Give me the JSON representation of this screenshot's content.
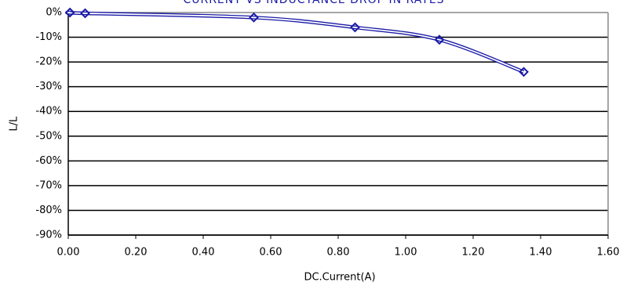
{
  "chart_data": {
    "type": "line",
    "title": "CURRENT VS INDUCTANCE DROP IN RATES",
    "x_label": "DC.Current(A)",
    "y_label": "L/L",
    "x": [
      0.005,
      0.05,
      0.55,
      0.85,
      1.1,
      1.35
    ],
    "series": [
      {
        "name": "L/L",
        "color": "#1a1aa6",
        "values": [
          0,
          -0.3,
          -2,
          -6,
          -11,
          -24
        ]
      }
    ],
    "xlim": [
      0,
      1.6
    ],
    "ylim": [
      -90,
      0
    ],
    "xticks": [
      {
        "value": 0,
        "label": "0.00"
      },
      {
        "value": 0.2,
        "label": "0.20"
      },
      {
        "value": 0.4,
        "label": "0.40"
      },
      {
        "value": 0.6,
        "label": "0.60"
      },
      {
        "value": 0.8,
        "label": "0.80"
      },
      {
        "value": 1.0,
        "label": "1.00"
      },
      {
        "value": 1.2,
        "label": "1.20"
      },
      {
        "value": 1.4,
        "label": "1.40"
      },
      {
        "value": 1.6,
        "label": "1.60"
      }
    ],
    "yticks": [
      {
        "value": 0,
        "label": "0%"
      },
      {
        "value": -10,
        "label": "-10%"
      },
      {
        "value": -20,
        "label": "-20%"
      },
      {
        "value": -30,
        "label": "-30%"
      },
      {
        "value": -40,
        "label": "-40%"
      },
      {
        "value": -50,
        "label": "-50%"
      },
      {
        "value": -60,
        "label": "-60%"
      },
      {
        "value": -70,
        "label": "-70%"
      },
      {
        "value": -80,
        "label": "-80%"
      },
      {
        "value": -90,
        "label": "-90%"
      }
    ],
    "grid": true
  }
}
